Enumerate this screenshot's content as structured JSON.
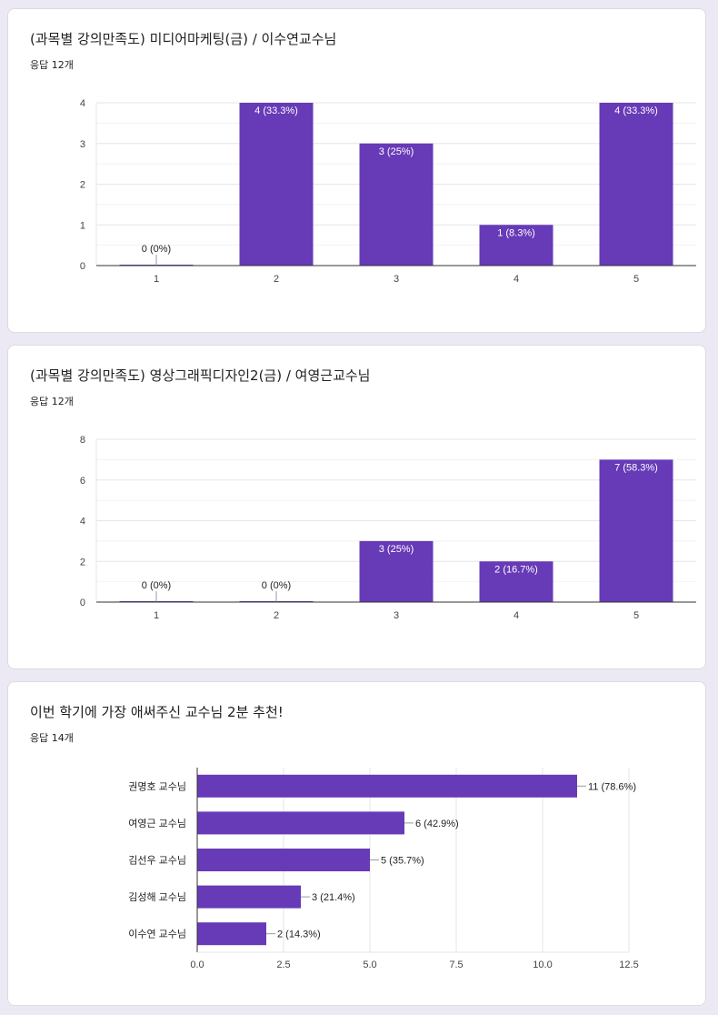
{
  "colors": {
    "bar": "#673ab7",
    "background": "#ece9f5",
    "axis": "#333333",
    "grid": "#e6e6e6"
  },
  "cards": [
    {
      "title": "(과목별 강의만족도) 미디어마케팅(금) / 이수연교수님",
      "response_count": "응답 12개"
    },
    {
      "title": "(과목별 강의만족도) 영상그래픽디자인2(금) / 여영근교수님",
      "response_count": "응답 12개"
    },
    {
      "title": "이번 학기에 가장 애써주신 교수님 2분 추천!",
      "response_count": "응답 14개"
    }
  ],
  "chart_data": [
    {
      "type": "bar",
      "title": "(과목별 강의만족도) 미디어마케팅(금) / 이수연교수님",
      "categories": [
        "1",
        "2",
        "3",
        "4",
        "5"
      ],
      "values": [
        0,
        4,
        3,
        1,
        4
      ],
      "labels": [
        "0 (0%)",
        "4 (33.3%)",
        "3 (25%)",
        "1 (8.3%)",
        "4 (33.3%)"
      ],
      "ylim": [
        0,
        4
      ],
      "yticks": [
        "0",
        "1",
        "2",
        "3",
        "4"
      ],
      "xlabel": "",
      "ylabel": ""
    },
    {
      "type": "bar",
      "title": "(과목별 강의만족도) 영상그래픽디자인2(금) / 여영근교수님",
      "categories": [
        "1",
        "2",
        "3",
        "4",
        "5"
      ],
      "values": [
        0,
        0,
        3,
        2,
        7
      ],
      "labels": [
        "0 (0%)",
        "0 (0%)",
        "3 (25%)",
        "2 (16.7%)",
        "7 (58.3%)"
      ],
      "ylim": [
        0,
        8
      ],
      "yticks": [
        "0",
        "2",
        "4",
        "6",
        "8"
      ],
      "xlabel": "",
      "ylabel": ""
    },
    {
      "type": "bar",
      "orientation": "horizontal",
      "title": "이번 학기에 가장 애써주신 교수님 2분 추천!",
      "categories": [
        "권명호 교수님",
        "여영근 교수님",
        "김선우 교수님",
        "김성해 교수님",
        "이수연 교수님"
      ],
      "values": [
        11,
        6,
        5,
        3,
        2
      ],
      "labels": [
        "11 (78.6%)",
        "6 (42.9%)",
        "5 (35.7%)",
        "3 (21.4%)",
        "2 (14.3%)"
      ],
      "xlim": [
        0,
        12.5
      ],
      "xticks": [
        "0.0",
        "2.5",
        "5.0",
        "7.5",
        "10.0",
        "12.5"
      ],
      "xlabel": "",
      "ylabel": ""
    }
  ]
}
